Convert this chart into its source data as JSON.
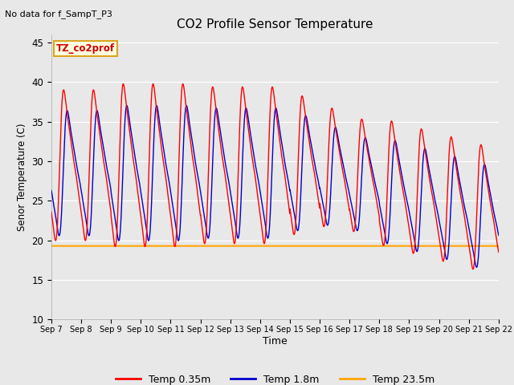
{
  "title": "CO2 Profile Sensor Temperature",
  "top_left_text": "No data for f_SampT_P3",
  "ylabel": "Senor Temperature (C)",
  "xlabel": "Time",
  "ylim": [
    10,
    46
  ],
  "yticks": [
    10,
    15,
    20,
    25,
    30,
    35,
    40,
    45
  ],
  "legend_label_box": "TZ_co2prof",
  "legend_entries": [
    "Temp 0.35m",
    "Temp 1.8m",
    "Temp 23.5m"
  ],
  "legend_colors": [
    "#ff0000",
    "#0000cc",
    "#ffa500"
  ],
  "line_color_035": "#ff0000",
  "line_color_18": "#0000cc",
  "line_color_235": "#ffa500",
  "flat_temp_235": 19.3,
  "plot_bg_color": "#e8e8e8",
  "fig_bg_color": "#e8e8e8",
  "x_start_day": 7,
  "x_end_day": 22,
  "x_tick_days": [
    7,
    8,
    9,
    10,
    11,
    12,
    13,
    14,
    15,
    16,
    17,
    18,
    19,
    20,
    21,
    22
  ],
  "x_tick_labels": [
    "Sep 7",
    "Sep 8",
    "Sep 9",
    "Sep 10",
    "Sep 11",
    "Sep 12",
    "Sep 13",
    "Sep 14",
    "Sep 15",
    "Sep 16",
    "Sep 17",
    "Sep 18",
    "Sep 19",
    "Sep 20",
    "Sep 21",
    "Sep 22"
  ]
}
